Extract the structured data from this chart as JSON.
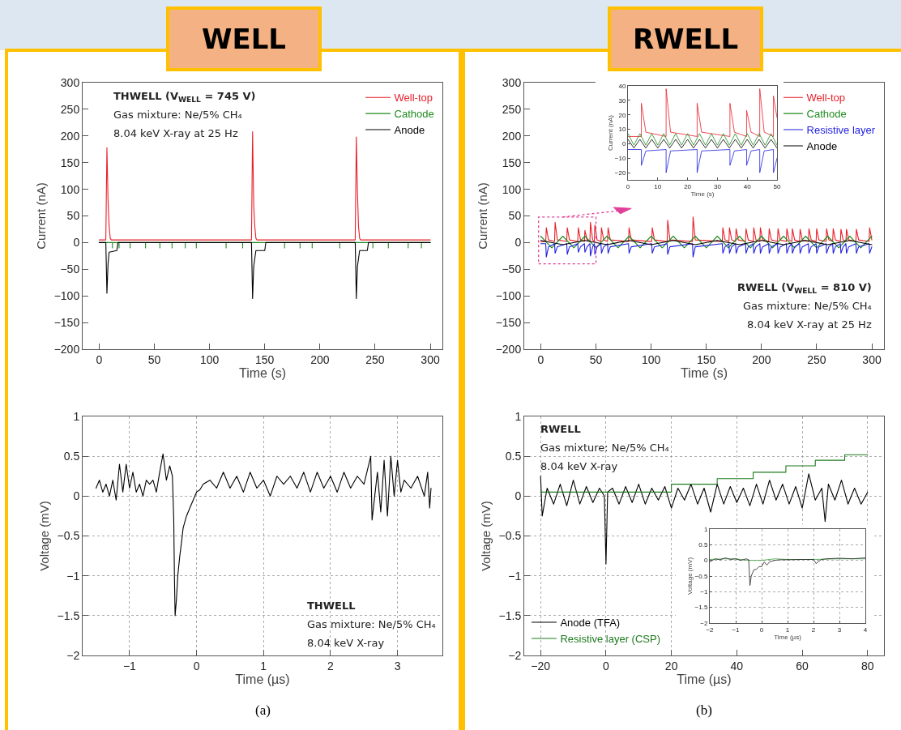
{
  "chart_data": [
    {
      "type": "line",
      "title": "WELL",
      "xlabel": "Time (s)",
      "ylabel": "Current (nA)",
      "xlim": [
        -15,
        311
      ],
      "xticks": [
        0,
        50,
        100,
        150,
        200,
        250,
        300
      ],
      "ylim": [
        -200,
        300
      ],
      "yticks": [
        -200,
        -150,
        -100,
        -50,
        0,
        50,
        100,
        150,
        200,
        250,
        300
      ],
      "legend": "top right",
      "grid": false,
      "annotations": [
        "THWELL (V$_{WELL}$ = 745 V)",
        "Gas mixture: Ne/5% CH₄",
        "8.04 keV X-ray at 25 Hz"
      ],
      "series": [
        {
          "name": "Well-top",
          "color": "#e8202a",
          "x": [
            0,
            6,
            7,
            8,
            9,
            10,
            11,
            138,
            139,
            140,
            141,
            142,
            143,
            232,
            233,
            234,
            235,
            236,
            237,
            300
          ],
          "values": [
            5,
            5,
            178,
            80,
            30,
            8,
            5,
            5,
            208,
            70,
            30,
            8,
            5,
            5,
            198,
            95,
            30,
            8,
            5,
            5
          ]
        },
        {
          "name": "Cathode",
          "color": "#1e8a1e",
          "x": [
            0,
            12,
            12,
            12,
            18,
            18,
            18,
            28,
            28,
            28,
            42,
            42,
            42,
            55,
            55,
            55,
            66,
            66,
            66,
            78,
            78,
            78,
            88,
            88,
            88,
            115,
            115,
            115,
            130,
            130,
            130,
            168,
            168,
            168,
            182,
            182,
            182,
            193,
            193,
            193,
            218,
            218,
            218,
            248,
            248,
            248,
            262,
            262,
            262,
            280,
            280,
            280,
            292,
            292,
            292,
            300
          ],
          "values": [
            0,
            0,
            -10,
            0,
            0,
            -10,
            0,
            0,
            -10,
            0,
            0,
            -10,
            0,
            0,
            -10,
            0,
            0,
            -10,
            0,
            0,
            -10,
            0,
            0,
            -10,
            0,
            0,
            -10,
            0,
            0,
            -10,
            0,
            0,
            -10,
            0,
            0,
            -10,
            0,
            0,
            -10,
            0,
            0,
            -10,
            0,
            0,
            -10,
            0,
            0,
            -10,
            0,
            0,
            -10,
            0,
            0,
            -10,
            0,
            0
          ]
        },
        {
          "name": "Anode",
          "color": "#000000",
          "x": [
            0,
            6,
            7,
            8,
            9,
            16,
            17,
            138,
            139,
            140,
            142,
            150,
            151,
            232,
            233,
            234,
            236,
            243,
            244,
            300
          ],
          "values": [
            0,
            0,
            -95,
            -40,
            -18,
            -15,
            0,
            0,
            -105,
            -45,
            -15,
            -15,
            0,
            0,
            -105,
            -45,
            -15,
            -15,
            0,
            0
          ]
        }
      ]
    },
    {
      "type": "line",
      "title": "RWELL",
      "xlabel": "Time (s)",
      "ylabel": "Current (nA)",
      "xlim": [
        -15,
        311
      ],
      "xticks": [
        0,
        50,
        100,
        150,
        200,
        250,
        300
      ],
      "ylim": [
        -200,
        300
      ],
      "yticks": [
        -200,
        -150,
        -100,
        -50,
        0,
        50,
        100,
        150,
        200,
        250,
        300
      ],
      "legend": "top right",
      "grid": false,
      "annotations": [
        "RWELL (V$_{WELL}$ = 810 V)",
        "Gas mixture: Ne/5% CH₄",
        "8.04 keV X-ray at 25 Hz"
      ],
      "series": [
        {
          "name": "Well-top",
          "color": "#e8202a",
          "x": [
            0,
            4.5,
            5,
            7,
            12.5,
            13,
            15,
            23.5,
            24,
            26,
            33.5,
            34,
            36,
            39.5,
            40,
            42,
            44.5,
            45,
            47,
            48.5,
            49,
            51,
            54.5,
            55,
            57,
            60.5,
            61,
            63,
            79.5,
            80,
            82,
            100.5,
            101,
            103,
            114.5,
            115,
            117,
            137.5,
            138,
            140,
            164.5,
            165,
            167,
            170.5,
            171,
            173,
            176.5,
            177,
            179,
            185.5,
            186,
            188,
            192.5,
            193,
            195,
            198.5,
            199,
            201,
            206.5,
            207,
            209,
            214.5,
            215,
            217,
            222.5,
            223,
            225,
            227.5,
            228,
            230,
            234.5,
            235,
            237,
            242.5,
            243,
            245,
            249.5,
            250,
            252,
            258.5,
            259,
            261,
            264.5,
            265,
            267,
            271.5,
            272,
            274,
            276.5,
            277,
            279,
            285.5,
            286,
            288,
            297.5,
            298,
            300
          ],
          "values": [
            2,
            2,
            28,
            5,
            2,
            38,
            5,
            2,
            28,
            5,
            2,
            28,
            5,
            2,
            23,
            5,
            2,
            38,
            5,
            2,
            33,
            5,
            2,
            28,
            5,
            2,
            28,
            5,
            2,
            28,
            5,
            2,
            28,
            5,
            2,
            42,
            5,
            2,
            48,
            5,
            2,
            28,
            5,
            2,
            28,
            5,
            2,
            26,
            5,
            2,
            26,
            5,
            2,
            28,
            5,
            2,
            28,
            5,
            2,
            26,
            5,
            2,
            26,
            5,
            2,
            26,
            5,
            2,
            26,
            5,
            2,
            25,
            5,
            2,
            26,
            5,
            2,
            26,
            5,
            2,
            26,
            5,
            2,
            26,
            5,
            2,
            25,
            5,
            2,
            25,
            5,
            2,
            25,
            5,
            2,
            28,
            5
          ]
        },
        {
          "name": "Cathode",
          "color": "#1e8a1e",
          "x": [
            0,
            10,
            20,
            30,
            40,
            50,
            60,
            70,
            80,
            90,
            100,
            110,
            120,
            130,
            140,
            150,
            160,
            170,
            180,
            190,
            200,
            210,
            220,
            230,
            240,
            250,
            260,
            270,
            280,
            290,
            300
          ],
          "values": [
            12,
            -10,
            12,
            -10,
            12,
            -10,
            12,
            -10,
            12,
            -10,
            12,
            -10,
            12,
            -10,
            12,
            -10,
            12,
            -10,
            12,
            -10,
            12,
            -10,
            12,
            -10,
            12,
            -10,
            12,
            -10,
            12,
            -10,
            12
          ]
        },
        {
          "name": "Resistive layer",
          "color": "#1f1fe0",
          "x": [
            0,
            4.5,
            5,
            7,
            12.5,
            13,
            15,
            23.5,
            24,
            26,
            33.5,
            34,
            36,
            39.5,
            40,
            42,
            44.5,
            45,
            47,
            48.5,
            49,
            51,
            54.5,
            55,
            57,
            60.5,
            61,
            63,
            79.5,
            80,
            82,
            100.5,
            101,
            103,
            114.5,
            115,
            117,
            137.5,
            138,
            140,
            164.5,
            165,
            167,
            170.5,
            171,
            173,
            176.5,
            177,
            179,
            185.5,
            186,
            188,
            192.5,
            193,
            195,
            198.5,
            199,
            201,
            206.5,
            207,
            209,
            214.5,
            215,
            217,
            222.5,
            223,
            225,
            227.5,
            228,
            230,
            234.5,
            235,
            237,
            242.5,
            243,
            245,
            249.5,
            250,
            252,
            258.5,
            259,
            261,
            264.5,
            265,
            267,
            271.5,
            272,
            274,
            276.5,
            277,
            279,
            285.5,
            286,
            288,
            297.5,
            298,
            300
          ],
          "values": [
            -2,
            -2,
            -27,
            -8,
            -2,
            -20,
            -8,
            -2,
            -22,
            -8,
            -2,
            -18,
            -8,
            -2,
            -18,
            -8,
            -2,
            -25,
            -8,
            -2,
            -22,
            -8,
            -2,
            -20,
            -8,
            -2,
            -20,
            -8,
            -2,
            -20,
            -8,
            -2,
            -20,
            -8,
            -2,
            -22,
            -8,
            -2,
            -27,
            -8,
            -2,
            -20,
            -8,
            -2,
            -20,
            -8,
            -2,
            -20,
            -8,
            -2,
            -20,
            -8,
            -2,
            -20,
            -8,
            -2,
            -20,
            -8,
            -2,
            -20,
            -8,
            -2,
            -20,
            -8,
            -2,
            -20,
            -8,
            -2,
            -20,
            -8,
            -2,
            -20,
            -8,
            -2,
            -20,
            -8,
            -2,
            -20,
            -8,
            -2,
            -20,
            -8,
            -2,
            -20,
            -8,
            -2,
            -20,
            -8,
            -2,
            -20,
            -8,
            -2,
            -20,
            -8,
            -2,
            -20,
            -8
          ]
        },
        {
          "name": "Anode",
          "color": "#000000",
          "x": [
            0,
            20,
            40,
            60,
            80,
            100,
            120,
            140,
            160,
            180,
            200,
            220,
            240,
            260,
            280,
            300
          ],
          "values": [
            4,
            -4,
            4,
            -4,
            4,
            -4,
            4,
            -4,
            4,
            -4,
            4,
            -4,
            4,
            -4,
            4,
            -4
          ]
        }
      ]
    },
    {
      "type": "line",
      "xlabel": "Time (µs)",
      "ylabel": "Voltage (mV)",
      "xlim": [
        -1.7,
        3.67
      ],
      "xticks": [
        -1,
        0,
        1,
        2,
        3
      ],
      "ylim": [
        -2,
        1
      ],
      "yticks": [
        -2,
        -1.5,
        -1,
        -0.5,
        0,
        0.5,
        1
      ],
      "grid": true,
      "annotations": [
        "THWELL",
        "Gas mixture: Ne/5% CH₄",
        "8.04 keV X-ray",
        "(a)"
      ],
      "series": [
        {
          "color": "#000000",
          "x": [
            -1.5,
            -1.45,
            -1.4,
            -1.35,
            -1.3,
            -1.25,
            -1.2,
            -1.15,
            -1.1,
            -1.05,
            -1.0,
            -0.95,
            -0.9,
            -0.85,
            -0.8,
            -0.75,
            -0.7,
            -0.65,
            -0.6,
            -0.55,
            -0.5,
            -0.45,
            -0.4,
            -0.36,
            -0.34,
            -0.33,
            -0.32,
            -0.3,
            -0.28,
            -0.25,
            -0.22,
            -0.2,
            -0.15,
            -0.1,
            -0.05,
            0,
            0.05,
            0.1,
            0.2,
            0.3,
            0.4,
            0.5,
            0.6,
            0.7,
            0.8,
            0.9,
            1.0,
            1.1,
            1.2,
            1.3,
            1.4,
            1.5,
            1.6,
            1.7,
            1.8,
            1.9,
            2.0,
            2.1,
            2.2,
            2.3,
            2.4,
            2.5,
            2.6,
            2.62,
            2.7,
            2.75,
            2.8,
            2.85,
            2.9,
            2.95,
            3.0,
            3.05,
            3.1,
            3.2,
            3.3,
            3.4,
            3.45,
            3.48,
            3.5
          ],
          "values": [
            0.1,
            0.2,
            0.05,
            0.15,
            0.0,
            0.2,
            -0.05,
            0.4,
            0.05,
            0.4,
            0.1,
            0.3,
            0.05,
            0.15,
            0.0,
            0.2,
            0.15,
            0.2,
            0.05,
            0.3,
            0.53,
            0.2,
            0.38,
            0.25,
            -0.3,
            -1.0,
            -1.5,
            -1.3,
            -1.0,
            -0.75,
            -0.55,
            -0.4,
            -0.25,
            -0.15,
            -0.05,
            0.05,
            0.08,
            0.15,
            0.2,
            0.1,
            0.3,
            0.1,
            0.25,
            0.05,
            0.3,
            0.1,
            0.2,
            0.0,
            0.25,
            0.15,
            0.25,
            0.1,
            0.3,
            0.05,
            0.3,
            0.1,
            0.25,
            0.05,
            0.3,
            0.1,
            0.25,
            0.15,
            0.5,
            -0.3,
            0.3,
            -0.2,
            0.45,
            -0.25,
            0.5,
            0.0,
            0.45,
            0.05,
            0.2,
            0.1,
            0.25,
            0.0,
            0.3,
            -0.15,
            0.1
          ]
        }
      ]
    },
    {
      "type": "line",
      "xlabel": "Time (µs)",
      "ylabel": "Voltage (mV)",
      "xlim": [
        -25,
        85
      ],
      "xticks": [
        -20,
        0,
        20,
        40,
        60,
        80
      ],
      "ylim": [
        -2,
        1
      ],
      "yticks": [
        -2,
        -1.5,
        -1,
        -0.5,
        0,
        0.5,
        1
      ],
      "grid": true,
      "legend": "bottom left",
      "annotations": [
        "RWELL",
        "Gas mixture: Ne/5% CH₄",
        "8.04 keV X-ray",
        "(b)"
      ],
      "series": [
        {
          "name": "Anode (TFA)",
          "color": "#000000",
          "x": [
            -20,
            -19.5,
            -18,
            -16,
            -14,
            -12,
            -10,
            -8,
            -6,
            -4,
            -2,
            -0.5,
            0,
            0.5,
            2,
            4,
            6,
            8,
            10,
            12,
            14,
            16,
            18,
            20,
            22,
            24,
            26,
            28,
            30,
            32,
            34,
            36,
            38,
            40,
            42,
            44,
            46,
            48,
            50,
            52,
            54,
            56,
            58,
            60,
            62,
            64,
            66,
            67,
            68,
            70,
            72,
            74,
            76,
            78,
            80
          ],
          "values": [
            0.25,
            -0.25,
            0.1,
            -0.1,
            0.15,
            -0.12,
            0.2,
            -0.1,
            0.12,
            -0.08,
            0.1,
            0.0,
            -0.85,
            0.05,
            0.1,
            -0.1,
            0.12,
            -0.08,
            0.15,
            -0.1,
            0.1,
            -0.05,
            0.12,
            -0.15,
            0.1,
            -0.05,
            0.15,
            -0.1,
            0.1,
            -0.2,
            0.15,
            -0.1,
            0.12,
            -0.08,
            0.1,
            -0.12,
            0.15,
            -0.1,
            0.2,
            -0.05,
            0.15,
            -0.1,
            0.12,
            -0.15,
            0.28,
            -0.05,
            0.1,
            -0.32,
            0.15,
            -0.05,
            0.2,
            -0.1,
            0.1,
            -0.1,
            0.05
          ]
        },
        {
          "name": "Resistive layer (CSP)",
          "type": "step",
          "color": "#1e7a1e",
          "x": [
            -20,
            20,
            34,
            45,
            55,
            64,
            73,
            80
          ],
          "values": [
            0.05,
            0.15,
            0.22,
            0.3,
            0.38,
            0.45,
            0.52,
            0.52
          ]
        }
      ]
    },
    {
      "type": "line",
      "xlabel": "Time (s)",
      "ylabel": "Current (nA)",
      "xlim": [
        0,
        50
      ],
      "xticks": [
        0,
        10,
        20,
        30,
        40,
        50
      ],
      "ylim": [
        -25,
        40
      ],
      "yticks": [
        -20,
        -10,
        0,
        10,
        20,
        30,
        40
      ],
      "grid": false,
      "series": [
        {
          "color": "#e8202a",
          "x": [
            0,
            4.5,
            4.5,
            6,
            12.8,
            12.8,
            14.3,
            23.2,
            23.2,
            24.7,
            34.2,
            34.2,
            35.7,
            39.8,
            39.8,
            41.3,
            44.2,
            44.2,
            45.7,
            48.8,
            48.8,
            50
          ],
          "values": [
            5,
            5,
            28,
            8,
            5,
            38,
            8,
            5,
            28,
            8,
            5,
            28,
            8,
            5,
            23,
            8,
            5,
            38,
            8,
            5,
            33,
            18
          ]
        },
        {
          "color": "#1e8a1e",
          "x": [
            0,
            2,
            4,
            6,
            8,
            10,
            12,
            14,
            16,
            18,
            20,
            22,
            24,
            26,
            28,
            30,
            32,
            34,
            36,
            38,
            40,
            42,
            44,
            46,
            48,
            50
          ],
          "values": [
            7,
            -1,
            7,
            -1,
            7,
            -1,
            7,
            -1,
            7,
            -1,
            7,
            -1,
            7,
            -1,
            7,
            -1,
            7,
            -1,
            7,
            -1,
            7,
            -1,
            7,
            -1,
            7,
            -1
          ]
        },
        {
          "color": "#000000",
          "x": [
            0,
            2,
            4,
            6,
            8,
            10,
            12,
            14,
            16,
            18,
            20,
            22,
            24,
            26,
            28,
            30,
            32,
            34,
            36,
            38,
            40,
            42,
            44,
            46,
            48,
            50
          ],
          "values": [
            3,
            -3,
            3,
            -3,
            3,
            -3,
            3,
            -3,
            3,
            -3,
            3,
            -3,
            3,
            -3,
            3,
            -3,
            3,
            -3,
            3,
            -3,
            3,
            -3,
            3,
            -3,
            3,
            -3
          ]
        },
        {
          "color": "#1f1fe0",
          "x": [
            0,
            4.5,
            4.5,
            6,
            12.8,
            12.8,
            14.3,
            23.2,
            23.2,
            24.7,
            34.2,
            34.2,
            35.7,
            39.8,
            39.8,
            41.3,
            44.2,
            44.2,
            45.7,
            48.8,
            48.8,
            50
          ],
          "values": [
            -4,
            -4,
            -15,
            -5,
            -4,
            -20,
            -5,
            -4,
            -20,
            -5,
            -4,
            -15,
            -5,
            -4,
            -15,
            -5,
            -4,
            -20,
            -5,
            -4,
            -20,
            -10
          ]
        }
      ]
    },
    {
      "type": "line",
      "xlabel": "Time (µs)",
      "ylabel": "Voltage (mV)",
      "xlim": [
        -2,
        4
      ],
      "xticks": [
        -2,
        -1,
        0,
        1,
        2,
        3,
        4
      ],
      "ylim": [
        -2,
        1
      ],
      "yticks": [
        -2,
        -1.5,
        -1,
        -0.5,
        0,
        0.5,
        1
      ],
      "grid": true,
      "series": [
        {
          "color": "#3c9a3c",
          "x": [
            -2,
            -1.5,
            -1,
            -0.5,
            0,
            0.5,
            1,
            2,
            3,
            4
          ],
          "values": [
            0.03,
            0.05,
            0.05,
            0.0,
            0.0,
            0.05,
            0.03,
            0.03,
            0.05,
            0.05
          ]
        },
        {
          "color": "#222222",
          "x": [
            -2,
            -1.8,
            -1.6,
            -1.4,
            -1.2,
            -1,
            -0.8,
            -0.6,
            -0.5,
            -0.45,
            -0.4,
            -0.3,
            -0.2,
            -0.1,
            0,
            0.1,
            0.2,
            0.3,
            0.5,
            0.7,
            1,
            1.5,
            2,
            2.1,
            2.3,
            2.5,
            3,
            3.5,
            4
          ],
          "values": [
            -0.05,
            0.05,
            0.02,
            0.08,
            0.03,
            0.05,
            0.0,
            0.05,
            0.02,
            -0.8,
            -0.5,
            -0.3,
            -0.28,
            -0.2,
            -0.2,
            -0.05,
            -0.15,
            -0.05,
            0.0,
            0.02,
            0.02,
            0.03,
            0.03,
            -0.1,
            0.03,
            0.05,
            0.07,
            0.05,
            0.08
          ]
        }
      ]
    }
  ]
}
